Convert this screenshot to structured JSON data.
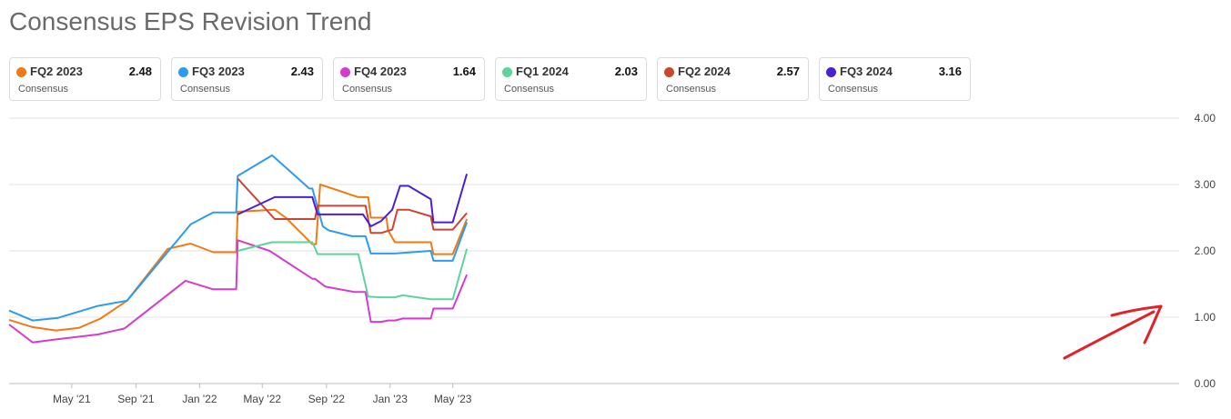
{
  "title": "Consensus EPS Revision Trend",
  "legend": [
    {
      "name": "FQ2 2023",
      "value": "2.48",
      "sub": "Consensus",
      "color": "#f07a14"
    },
    {
      "name": "FQ3 2023",
      "value": "2.43",
      "sub": "Consensus",
      "color": "#2d9cf0"
    },
    {
      "name": "FQ4 2023",
      "value": "1.64",
      "sub": "Consensus",
      "color": "#d63ccc"
    },
    {
      "name": "FQ1 2024",
      "value": "2.03",
      "sub": "Consensus",
      "color": "#5fd39b"
    },
    {
      "name": "FQ2 2024",
      "value": "2.57",
      "sub": "Consensus",
      "color": "#cc4433"
    },
    {
      "name": "FQ3 2024",
      "value": "3.16",
      "sub": "Consensus",
      "color": "#4a1fd6"
    }
  ],
  "chart_data": {
    "type": "line",
    "title": "Consensus EPS Revision Trend",
    "x_tick_labels": [
      "May '21",
      "Sep '21",
      "Jan '22",
      "May '22",
      "Sep '22",
      "Jan '23",
      "May '23"
    ],
    "x_tick_dates": [
      "2021-05-01",
      "2021-09-01",
      "2022-01-01",
      "2022-05-01",
      "2022-09-01",
      "2023-01-01",
      "2023-05-01"
    ],
    "x_range": [
      "2021-01-01",
      "2023-06-01"
    ],
    "y_tick_labels": [
      "0.00",
      "1.00",
      "2.00",
      "3.00",
      "4.00"
    ],
    "ylim": [
      0,
      4
    ],
    "grid": true,
    "y_axis_side": "right",
    "series": [
      {
        "name": "FQ2 2023",
        "color": "#f07a14",
        "points": [
          [
            "2021-01-01",
            0.96
          ],
          [
            "2021-02-15",
            0.85
          ],
          [
            "2021-04-01",
            0.8
          ],
          [
            "2021-05-15",
            0.84
          ],
          [
            "2021-06-25",
            0.98
          ],
          [
            "2021-08-15",
            1.25
          ],
          [
            "2021-11-01",
            2.03
          ],
          [
            "2021-12-15",
            2.11
          ],
          [
            "2022-01-27",
            1.98
          ],
          [
            "2022-03-12",
            1.98
          ],
          [
            "2022-03-15",
            2.59
          ],
          [
            "2022-05-25",
            2.62
          ],
          [
            "2022-06-15",
            2.5
          ],
          [
            "2022-08-05",
            2.1
          ],
          [
            "2022-08-12",
            2.1
          ],
          [
            "2022-08-20",
            3.0
          ],
          [
            "2022-11-01",
            2.81
          ],
          [
            "2022-11-20",
            2.81
          ],
          [
            "2022-11-25",
            2.5
          ],
          [
            "2022-12-15",
            2.5
          ],
          [
            "2022-12-25",
            2.5
          ],
          [
            "2022-12-28",
            2.31
          ],
          [
            "2023-01-10",
            2.13
          ],
          [
            "2023-03-20",
            2.13
          ],
          [
            "2023-03-25",
            1.95
          ],
          [
            "2023-05-01",
            1.95
          ],
          [
            "2023-05-28",
            2.48
          ]
        ]
      },
      {
        "name": "FQ3 2023",
        "color": "#2d9cf0",
        "points": [
          [
            "2021-01-01",
            1.1
          ],
          [
            "2021-02-15",
            0.95
          ],
          [
            "2021-04-05",
            0.99
          ],
          [
            "2021-06-20",
            1.17
          ],
          [
            "2021-08-15",
            1.25
          ],
          [
            "2021-12-15",
            2.4
          ],
          [
            "2022-01-27",
            2.58
          ],
          [
            "2022-03-12",
            2.58
          ],
          [
            "2022-03-15",
            3.13
          ],
          [
            "2022-05-20",
            3.44
          ],
          [
            "2022-07-30",
            2.94
          ],
          [
            "2022-08-05",
            2.94
          ],
          [
            "2022-08-25",
            2.37
          ],
          [
            "2022-09-05",
            2.31
          ],
          [
            "2022-10-20",
            2.22
          ],
          [
            "2022-11-15",
            2.22
          ],
          [
            "2022-11-25",
            1.96
          ],
          [
            "2022-12-15",
            1.96
          ],
          [
            "2023-01-10",
            1.96
          ],
          [
            "2023-03-20",
            2.0
          ],
          [
            "2023-03-25",
            1.85
          ],
          [
            "2023-05-01",
            1.85
          ],
          [
            "2023-05-28",
            2.43
          ]
        ]
      },
      {
        "name": "FQ4 2023",
        "color": "#d63ccc",
        "points": [
          [
            "2021-01-01",
            0.89
          ],
          [
            "2021-02-15",
            0.62
          ],
          [
            "2021-04-05",
            0.67
          ],
          [
            "2021-06-20",
            0.74
          ],
          [
            "2021-08-10",
            0.83
          ],
          [
            "2021-12-05",
            1.55
          ],
          [
            "2022-01-27",
            1.42
          ],
          [
            "2022-03-12",
            1.42
          ],
          [
            "2022-03-15",
            2.16
          ],
          [
            "2022-05-15",
            2.0
          ],
          [
            "2022-08-05",
            1.58
          ],
          [
            "2022-08-10",
            1.58
          ],
          [
            "2022-08-30",
            1.46
          ],
          [
            "2022-10-25",
            1.38
          ],
          [
            "2022-11-15",
            1.38
          ],
          [
            "2022-11-25",
            0.93
          ],
          [
            "2022-12-15",
            0.93
          ],
          [
            "2022-12-28",
            0.95
          ],
          [
            "2023-01-10",
            0.95
          ],
          [
            "2023-01-25",
            0.98
          ],
          [
            "2023-03-20",
            0.98
          ],
          [
            "2023-03-25",
            1.13
          ],
          [
            "2023-05-01",
            1.13
          ],
          [
            "2023-05-28",
            1.64
          ]
        ]
      },
      {
        "name": "FQ1 2024",
        "color": "#5fd39b",
        "points": [
          [
            "2022-03-15",
            2.0
          ],
          [
            "2022-05-20",
            2.13
          ],
          [
            "2022-08-05",
            2.13
          ],
          [
            "2022-08-15",
            1.95
          ],
          [
            "2022-09-15",
            1.95
          ],
          [
            "2022-11-01",
            1.95
          ],
          [
            "2022-11-20",
            1.31
          ],
          [
            "2022-12-15",
            1.3
          ],
          [
            "2023-01-10",
            1.3
          ],
          [
            "2023-01-25",
            1.33
          ],
          [
            "2023-03-20",
            1.27
          ],
          [
            "2023-05-01",
            1.27
          ],
          [
            "2023-05-28",
            2.03
          ]
        ]
      },
      {
        "name": "FQ2 2024",
        "color": "#cc4433",
        "points": [
          [
            "2022-03-15",
            3.09
          ],
          [
            "2022-05-25",
            2.48
          ],
          [
            "2022-06-15",
            2.48
          ],
          [
            "2022-08-10",
            2.48
          ],
          [
            "2022-08-15",
            2.68
          ],
          [
            "2022-10-20",
            2.68
          ],
          [
            "2022-11-15",
            2.68
          ],
          [
            "2022-11-25",
            2.27
          ],
          [
            "2022-12-15",
            2.27
          ],
          [
            "2023-01-05",
            2.32
          ],
          [
            "2023-01-15",
            2.62
          ],
          [
            "2023-02-05",
            2.62
          ],
          [
            "2023-03-20",
            2.52
          ],
          [
            "2023-03-25",
            2.32
          ],
          [
            "2023-05-01",
            2.32
          ],
          [
            "2023-05-28",
            2.57
          ]
        ]
      },
      {
        "name": "FQ3 2024",
        "color": "#4a1fd6",
        "points": [
          [
            "2022-03-15",
            2.55
          ],
          [
            "2022-05-25",
            2.81
          ],
          [
            "2022-08-05",
            2.81
          ],
          [
            "2022-08-15",
            2.55
          ],
          [
            "2022-09-15",
            2.55
          ],
          [
            "2022-11-10",
            2.55
          ],
          [
            "2022-11-25",
            2.37
          ],
          [
            "2022-12-15",
            2.45
          ],
          [
            "2023-01-05",
            2.62
          ],
          [
            "2023-01-20",
            2.98
          ],
          [
            "2023-02-05",
            2.98
          ],
          [
            "2023-03-20",
            2.78
          ],
          [
            "2023-03-25",
            2.43
          ],
          [
            "2023-05-01",
            2.43
          ],
          [
            "2023-05-28",
            3.16
          ]
        ]
      }
    ],
    "annotations": [
      {
        "type": "arrow",
        "color": "#e0222a",
        "description": "red hand-drawn arrow pointing to the upturn at the right end of the lines"
      }
    ]
  }
}
